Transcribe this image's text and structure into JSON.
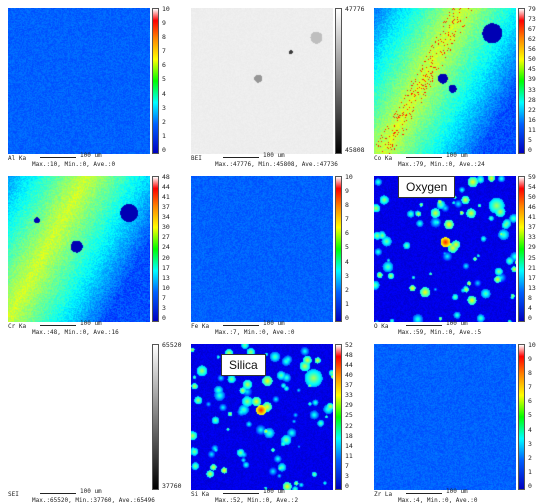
{
  "panels": [
    {
      "element": "Al Ka",
      "stats": "Max.:10, Min.:0, Ave.:0",
      "ticks": [
        "10",
        "9",
        "8",
        "7",
        "6",
        "5",
        "4",
        "3",
        "2",
        "1",
        "0"
      ],
      "colormap": "jet",
      "pattern": "flat",
      "level": 0.22
    },
    {
      "element": "BEI",
      "stats": "Max.:47776, Min.:45808, Ave.:47736",
      "ticks": [
        "47776",
        "",
        "",
        "",
        "",
        "",
        "",
        "",
        "",
        "",
        "45808"
      ],
      "colormap": "gray",
      "pattern": "bei",
      "level": 0.98
    },
    {
      "element": "Co Ka",
      "stats": "Max.:79, Min.:0, Ave.:24",
      "ticks": [
        "79",
        "73",
        "67",
        "62",
        "56",
        "50",
        "45",
        "39",
        "33",
        "28",
        "22",
        "16",
        "11",
        "5",
        "0"
      ],
      "colormap": "jet",
      "pattern": "band",
      "level": 0.35
    },
    {
      "element": "Cr Ka",
      "stats": "Max.:48, Min.:0, Ave.:16",
      "ticks": [
        "48",
        "44",
        "41",
        "37",
        "34",
        "30",
        "27",
        "24",
        "20",
        "17",
        "13",
        "10",
        "7",
        "3",
        "0"
      ],
      "colormap": "jet",
      "pattern": "band2",
      "level": 0.35
    },
    {
      "element": "Fe Ka",
      "stats": "Max.:7, Min.:0, Ave.:0",
      "ticks": [
        "10",
        "9",
        "8",
        "7",
        "6",
        "5",
        "4",
        "3",
        "2",
        "1",
        "0"
      ],
      "colormap": "jet",
      "pattern": "flat",
      "level": 0.22
    },
    {
      "element": "O Ka",
      "stats": "Max.:59, Min.:0, Ave.:5",
      "ticks": [
        "59",
        "54",
        "50",
        "46",
        "41",
        "37",
        "33",
        "29",
        "25",
        "21",
        "17",
        "13",
        "8",
        "4",
        "0"
      ],
      "colormap": "jet",
      "pattern": "speckle",
      "level": 0.1
    },
    {
      "element": "SEI",
      "stats": "Max.:65520, Min.:37760, Ave.:65496",
      "ticks": [
        "65520",
        "",
        "",
        "",
        "",
        "",
        "",
        "",
        "",
        "",
        "37760"
      ],
      "colormap": "gray",
      "pattern": "white",
      "level": 1.0
    },
    {
      "element": "Si Ka",
      "stats": "Max.:52, Min.:0, Ave.:2",
      "ticks": [
        "52",
        "48",
        "44",
        "40",
        "37",
        "33",
        "29",
        "25",
        "22",
        "18",
        "14",
        "11",
        "7",
        "3",
        "0"
      ],
      "colormap": "jet",
      "pattern": "speckle2",
      "level": 0.05
    },
    {
      "element": "Zr La",
      "stats": "Max.:4, Min.:0, Ave.:0",
      "ticks": [
        "10",
        "9",
        "8",
        "7",
        "6",
        "5",
        "4",
        "3",
        "2",
        "1",
        "0"
      ],
      "colormap": "jet",
      "pattern": "flat",
      "level": 0.22
    }
  ],
  "scale_label": "100 um",
  "annotations": {
    "oxygen": "Oxygen",
    "silica": "Silica"
  }
}
